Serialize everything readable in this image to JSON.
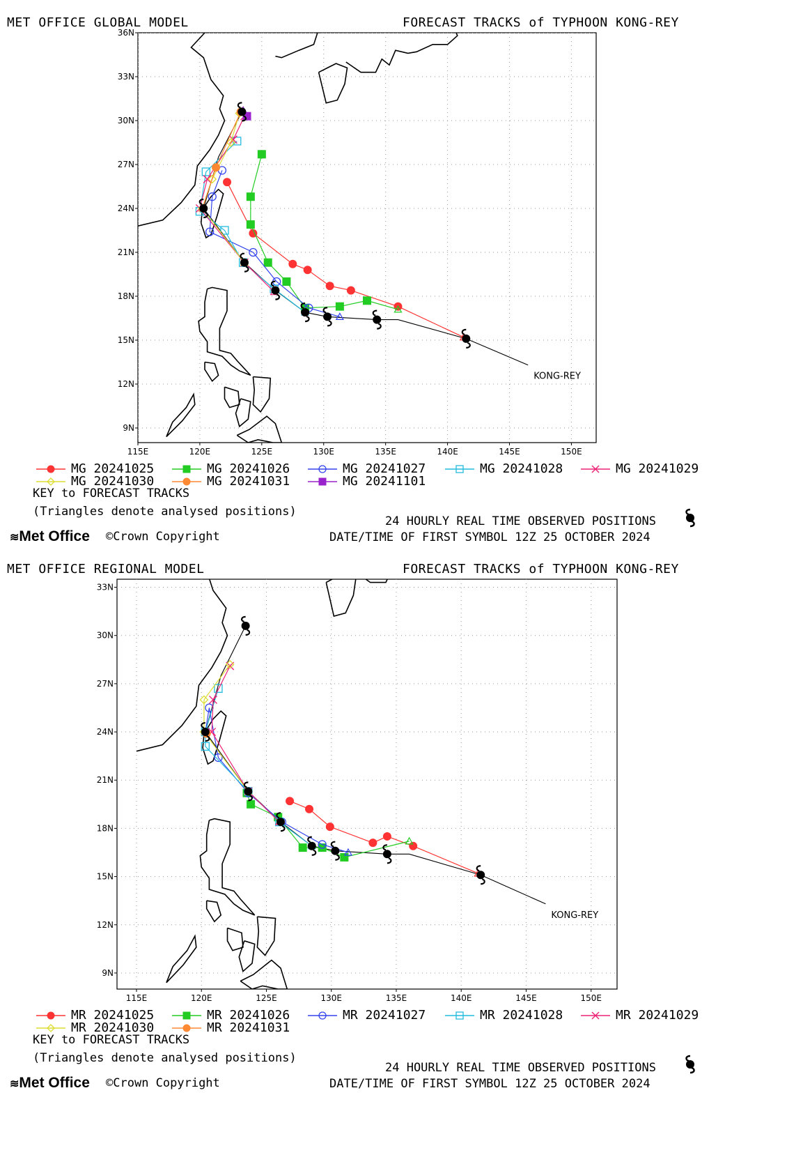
{
  "panels": [
    {
      "model_title": "MET OFFICE GLOBAL MODEL",
      "forecast_title": "FORECAST TRACKS of TYPHOON KONG-REY",
      "storm_label": "KONG-REY",
      "lon_range": [
        115,
        152
      ],
      "lat_range": [
        8,
        36
      ],
      "lon_ticks": [
        "115E",
        "120E",
        "125E",
        "130E",
        "135E",
        "140E",
        "145E",
        "150E"
      ],
      "lat_ticks": [
        "9N",
        "12N",
        "15N",
        "18N",
        "21N",
        "24N",
        "27N",
        "30N",
        "33N",
        "36N"
      ],
      "legend": [
        {
          "label": "MG 20241025",
          "color": "#ff3333",
          "marker": "circle-filled"
        },
        {
          "label": "MG 20241026",
          "color": "#22cc22",
          "marker": "square-filled"
        },
        {
          "label": "MG 20241027",
          "color": "#3344ee",
          "marker": "circle-open"
        },
        {
          "label": "MG 20241028",
          "color": "#22bbdd",
          "marker": "square-open"
        },
        {
          "label": "MG 20241029",
          "color": "#ee2277",
          "marker": "x"
        },
        {
          "label": "MG 20241030",
          "color": "#dddd33",
          "marker": "diamond-open"
        },
        {
          "label": "MG 20241031",
          "color": "#ff8833",
          "marker": "circle-filled"
        },
        {
          "label": "MG 20241101",
          "color": "#9922cc",
          "marker": "square-filled"
        }
      ],
      "key_title": "KEY to FORECAST TRACKS",
      "key_note": "(Triangles denote analysed positions)",
      "observed_label": "24 HOURLY REAL TIME OBSERVED POSITIONS",
      "first_symbol": "DATE/TIME OF FIRST SYMBOL 12Z 25 OCTOBER 2024",
      "logo": "Met Office",
      "copyright": "Crown Copyright"
    },
    {
      "model_title": "MET OFFICE REGIONAL MODEL",
      "forecast_title": "FORECAST TRACKS of TYPHOON KONG-REY",
      "storm_label": "KONG-REY",
      "lon_range": [
        113.5,
        152
      ],
      "lat_range": [
        8,
        33.5
      ],
      "lon_ticks": [
        "115E",
        "120E",
        "125E",
        "130E",
        "135E",
        "140E",
        "145E",
        "150E"
      ],
      "lat_ticks": [
        "9N",
        "12N",
        "15N",
        "18N",
        "21N",
        "24N",
        "27N",
        "30N",
        "33N"
      ],
      "legend": [
        {
          "label": "MR 20241025",
          "color": "#ff3333",
          "marker": "circle-filled"
        },
        {
          "label": "MR 20241026",
          "color": "#22cc22",
          "marker": "square-filled"
        },
        {
          "label": "MR 20241027",
          "color": "#3344ee",
          "marker": "circle-open"
        },
        {
          "label": "MR 20241028",
          "color": "#22bbdd",
          "marker": "square-open"
        },
        {
          "label": "MR 20241029",
          "color": "#ee2277",
          "marker": "x"
        },
        {
          "label": "MR 20241030",
          "color": "#dddd33",
          "marker": "diamond-open"
        },
        {
          "label": "MR 20241031",
          "color": "#ff8833",
          "marker": "circle-filled"
        }
      ],
      "key_title": "KEY to FORECAST TRACKS",
      "key_note": "(Triangles denote analysed positions)",
      "observed_label": "24 HOURLY REAL TIME OBSERVED POSITIONS",
      "first_symbol": "DATE/TIME OF FIRST SYMBOL 12Z 25 OCTOBER 2024",
      "logo": "Met Office",
      "copyright": "Crown Copyright"
    }
  ],
  "observed_track": [
    [
      146.5,
      13.3
    ],
    [
      141.5,
      15.1
    ],
    [
      136.0,
      16.4
    ],
    [
      134.3,
      16.4
    ],
    [
      130.3,
      16.6
    ],
    [
      128.5,
      16.9
    ],
    [
      126.1,
      18.4
    ],
    [
      123.6,
      20.3
    ],
    [
      120.3,
      24.0
    ],
    [
      121.5,
      27.5
    ],
    [
      123.4,
      30.6
    ]
  ],
  "observed_symbols": [
    [
      141.5,
      15.1
    ],
    [
      134.3,
      16.4
    ],
    [
      130.3,
      16.6
    ],
    [
      128.5,
      16.9
    ],
    [
      126.1,
      18.4
    ],
    [
      123.6,
      20.3
    ],
    [
      120.3,
      24.0
    ],
    [
      123.4,
      30.6
    ]
  ],
  "global_tracks": [
    {
      "name": "MG 20241025",
      "points": [
        [
          141.3,
          15.2
        ],
        [
          136.0,
          17.3
        ],
        [
          132.2,
          18.4
        ],
        [
          130.5,
          18.7
        ],
        [
          128.7,
          19.8
        ],
        [
          127.5,
          20.2
        ],
        [
          124.3,
          22.3
        ],
        [
          122.2,
          25.8
        ]
      ]
    },
    {
      "name": "MG 20241026",
      "points": [
        [
          136.0,
          17.1
        ],
        [
          133.5,
          17.7
        ],
        [
          131.3,
          17.3
        ],
        [
          128.5,
          17.2
        ],
        [
          127.0,
          19.0
        ],
        [
          125.5,
          20.3
        ],
        [
          124.1,
          22.9
        ],
        [
          124.1,
          24.8
        ],
        [
          125.0,
          27.7
        ]
      ]
    },
    {
      "name": "MG 20241027",
      "points": [
        [
          131.3,
          16.6
        ],
        [
          128.8,
          17.2
        ],
        [
          126.2,
          19.0
        ],
        [
          124.3,
          21.0
        ],
        [
          120.8,
          22.4
        ],
        [
          121.0,
          24.8
        ],
        [
          121.8,
          26.6
        ]
      ]
    },
    {
      "name": "MG 20241028",
      "points": [
        [
          128.5,
          16.9
        ],
        [
          126.0,
          18.5
        ],
        [
          123.5,
          20.3
        ],
        [
          122.0,
          22.5
        ],
        [
          120.0,
          23.8
        ],
        [
          120.5,
          26.5
        ],
        [
          123.0,
          28.6
        ]
      ]
    },
    {
      "name": "MG 20241029",
      "points": [
        [
          126.0,
          18.3
        ],
        [
          123.6,
          20.3
        ],
        [
          120.0,
          24.0
        ],
        [
          120.6,
          26.0
        ],
        [
          122.7,
          28.7
        ],
        [
          123.6,
          30.3
        ]
      ]
    },
    {
      "name": "MG 20241030",
      "points": [
        [
          123.6,
          20.3
        ],
        [
          120.2,
          24.0
        ],
        [
          121.0,
          26.0
        ],
        [
          122.5,
          28.5
        ],
        [
          123.2,
          30.5
        ]
      ]
    },
    {
      "name": "MG 20241031",
      "points": [
        [
          120.2,
          24.0
        ],
        [
          121.3,
          26.8
        ],
        [
          123.3,
          30.6
        ]
      ]
    },
    {
      "name": "MG 20241101",
      "points": [
        [
          123.5,
          30.7
        ],
        [
          123.8,
          30.3
        ]
      ]
    }
  ],
  "regional_tracks": [
    {
      "name": "MR 20241025",
      "points": [
        [
          141.3,
          15.2
        ],
        [
          136.3,
          16.9
        ],
        [
          134.3,
          17.5
        ],
        [
          133.2,
          17.1
        ],
        [
          129.9,
          18.1
        ],
        [
          128.3,
          19.2
        ],
        [
          126.8,
          19.7
        ]
      ]
    },
    {
      "name": "MR 20241026",
      "points": [
        [
          136.0,
          17.2
        ],
        [
          131.0,
          16.2
        ],
        [
          129.3,
          16.8
        ],
        [
          127.8,
          16.8
        ],
        [
          125.9,
          18.7
        ],
        [
          123.8,
          19.5
        ],
        [
          123.5,
          20.2
        ]
      ]
    },
    {
      "name": "MR 20241027",
      "points": [
        [
          131.3,
          16.5
        ],
        [
          129.3,
          17.0
        ],
        [
          126.2,
          18.4
        ],
        [
          123.6,
          20.2
        ],
        [
          121.3,
          22.4
        ],
        [
          120.6,
          25.5
        ],
        [
          120.3,
          24.0
        ]
      ]
    },
    {
      "name": "MR 20241028",
      "points": [
        [
          128.5,
          16.9
        ],
        [
          126.0,
          18.4
        ],
        [
          123.6,
          20.3
        ],
        [
          120.3,
          23.1
        ],
        [
          120.3,
          24.0
        ],
        [
          121.3,
          26.7
        ]
      ]
    },
    {
      "name": "MR 20241029",
      "points": [
        [
          126.0,
          18.4
        ],
        [
          123.6,
          20.3
        ],
        [
          120.8,
          24.0
        ],
        [
          120.9,
          26.0
        ],
        [
          122.2,
          28.1
        ]
      ]
    },
    {
      "name": "MR 20241030",
      "points": [
        [
          123.6,
          20.3
        ],
        [
          120.2,
          24.0
        ],
        [
          120.2,
          26.0
        ],
        [
          122.2,
          28.2
        ]
      ]
    },
    {
      "name": "MR 20241031",
      "points": [
        [
          120.3,
          24.0
        ],
        [
          120.4,
          23.9
        ]
      ]
    }
  ]
}
